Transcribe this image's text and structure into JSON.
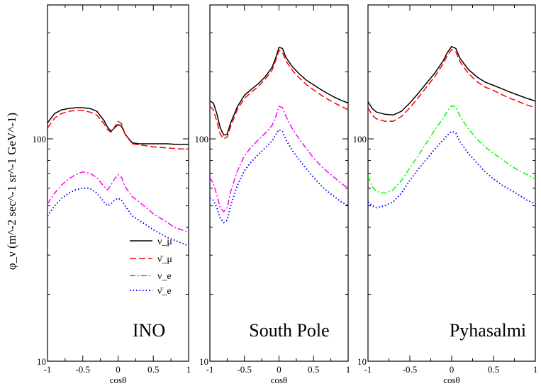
{
  "chart_data": [
    {
      "type": "line",
      "title": "INO",
      "xlabel": "cosθ",
      "ylabel": "φ_ν (m^-2 sec^-1 sr^-1 GeV^-1)",
      "xlim": [
        -1,
        1
      ],
      "ylim": [
        10,
        400
      ],
      "yscale": "log",
      "xticks": [
        "-1",
        "-0.5",
        "0",
        "0.5",
        "1"
      ],
      "yticks": [
        "100",
        "10"
      ],
      "legend": [
        "ν_μ",
        "ν̄_μ",
        "ν_e",
        "ν̄_e"
      ],
      "x": [
        -1,
        -0.9,
        -0.8,
        -0.7,
        -0.6,
        -0.5,
        -0.4,
        -0.3,
        -0.2,
        -0.15,
        -0.1,
        -0.05,
        0,
        0.05,
        0.1,
        0.2,
        0.3,
        0.4,
        0.5,
        0.6,
        0.7,
        0.8,
        0.9,
        1
      ],
      "series": [
        {
          "name": "ν_μ",
          "color": "#000000",
          "style": "solid",
          "values": [
            118,
            130,
            135,
            137,
            138,
            138,
            137,
            133,
            121,
            113,
            108,
            112,
            116,
            114,
            105,
            96,
            95,
            95,
            95,
            95,
            95,
            94.5,
            94.5,
            94.5
          ]
        },
        {
          "name": "ν̄_μ",
          "color": "#ff0000",
          "style": "dashed",
          "values": [
            112,
            124,
            130,
            133,
            134,
            134,
            132,
            128,
            117,
            110,
            107,
            113,
            120,
            117,
            105,
            95,
            94,
            93,
            92,
            91.5,
            91,
            90.5,
            90,
            90
          ]
        },
        {
          "name": "ν_e",
          "color": "#ff00ff",
          "style": "dashdot",
          "values": [
            51,
            57,
            62,
            66,
            69,
            71,
            70,
            67,
            61,
            59,
            62,
            66,
            69,
            67,
            61,
            55,
            52,
            49,
            46,
            44,
            42,
            40,
            39,
            38
          ]
        },
        {
          "name": "ν̄_e",
          "color": "#0000ff",
          "style": "dotted",
          "values": [
            45,
            50,
            54,
            57,
            59,
            60,
            60,
            57,
            52,
            50,
            51,
            53,
            54,
            53,
            50,
            45,
            43,
            41,
            39,
            37.5,
            36,
            35,
            34,
            33
          ]
        }
      ]
    },
    {
      "type": "line",
      "title": "South Pole",
      "xlabel": "cosθ",
      "xlim": [
        -1,
        1
      ],
      "ylim": [
        10,
        400
      ],
      "yscale": "log",
      "xticks": [
        "-1",
        "-0.5",
        "0",
        "0.5",
        "1"
      ],
      "yticks": [
        "100",
        "10"
      ],
      "x": [
        -1,
        -0.95,
        -0.9,
        -0.85,
        -0.8,
        -0.75,
        -0.7,
        -0.6,
        -0.5,
        -0.4,
        -0.3,
        -0.2,
        -0.1,
        -0.05,
        0,
        0.05,
        0.1,
        0.2,
        0.3,
        0.4,
        0.5,
        0.6,
        0.7,
        0.8,
        0.9,
        1
      ],
      "series": [
        {
          "name": "ν_μ",
          "color": "#000000",
          "style": "solid",
          "values": [
            148,
            145,
            130,
            112,
            104,
            105,
            118,
            140,
            157,
            167,
            177,
            190,
            210,
            230,
            258,
            255,
            232,
            210,
            195,
            183,
            175,
            167,
            160,
            154,
            149,
            145
          ]
        },
        {
          "name": "ν̄_μ",
          "color": "#ff0000",
          "style": "dashed",
          "values": [
            140,
            135,
            120,
            105,
            100,
            102,
            114,
            136,
            152,
            162,
            172,
            185,
            204,
            224,
            250,
            245,
            224,
            202,
            187,
            175,
            166,
            158,
            151,
            145,
            140,
            135
          ]
        },
        {
          "name": "ν_e",
          "color": "#ff00ff",
          "style": "dashdot",
          "values": [
            67,
            63,
            56,
            49,
            47,
            49,
            58,
            72,
            84,
            92,
            99,
            106,
            115,
            125,
            140,
            138,
            126,
            110,
            99,
            90,
            82,
            76,
            71,
            67,
            63,
            60
          ]
        },
        {
          "name": "ν̄_e",
          "color": "#0000ff",
          "style": "dotted",
          "values": [
            54,
            53,
            49,
            44,
            42,
            43,
            50,
            62,
            72,
            79,
            85,
            91,
            98,
            104,
            110,
            108,
            99,
            88,
            80,
            73,
            67,
            62,
            58,
            55,
            52,
            50
          ]
        }
      ]
    },
    {
      "type": "line",
      "title": "Pyhasalmi",
      "xlabel": "cosθ",
      "xlim": [
        -1,
        1
      ],
      "ylim": [
        10,
        400
      ],
      "yscale": "log",
      "xticks": [
        "-1",
        "-0.5",
        "0",
        "0.5",
        "1"
      ],
      "yticks": [
        "100",
        "10"
      ],
      "x": [
        -1,
        -0.95,
        -0.9,
        -0.8,
        -0.7,
        -0.6,
        -0.5,
        -0.4,
        -0.3,
        -0.2,
        -0.1,
        -0.05,
        0,
        0.05,
        0.1,
        0.2,
        0.3,
        0.4,
        0.5,
        0.6,
        0.7,
        0.8,
        0.9,
        1
      ],
      "series": [
        {
          "name": "ν_μ",
          "color": "#000000",
          "style": "solid",
          "values": [
            147,
            137,
            132,
            129,
            128,
            133,
            145,
            160,
            178,
            198,
            225,
            245,
            260,
            255,
            230,
            205,
            190,
            180,
            174,
            168,
            162,
            157,
            152,
            148
          ]
        },
        {
          "name": "ν̄_μ",
          "color": "#ff0000",
          "style": "dashed",
          "values": [
            138,
            128,
            123,
            120,
            120,
            126,
            138,
            153,
            171,
            191,
            218,
            238,
            252,
            246,
            222,
            197,
            181,
            171,
            165,
            158,
            152,
            147,
            142,
            138
          ]
        },
        {
          "name": "ν_e",
          "color": "#00ff00",
          "style": "dashdot",
          "values": [
            68,
            61,
            58,
            57,
            59,
            65,
            74,
            84,
            96,
            110,
            124,
            133,
            141,
            139,
            126,
            111,
            100,
            92,
            86,
            81,
            76,
            72,
            69,
            66
          ]
        },
        {
          "name": "ν̄_e",
          "color": "#0000ff",
          "style": "dotted",
          "values": [
            52,
            50,
            49,
            50,
            52,
            57,
            65,
            73,
            81,
            90,
            99,
            104,
            108,
            106,
            97,
            86,
            78,
            71,
            66,
            62,
            59,
            56,
            53,
            51
          ]
        }
      ]
    }
  ]
}
